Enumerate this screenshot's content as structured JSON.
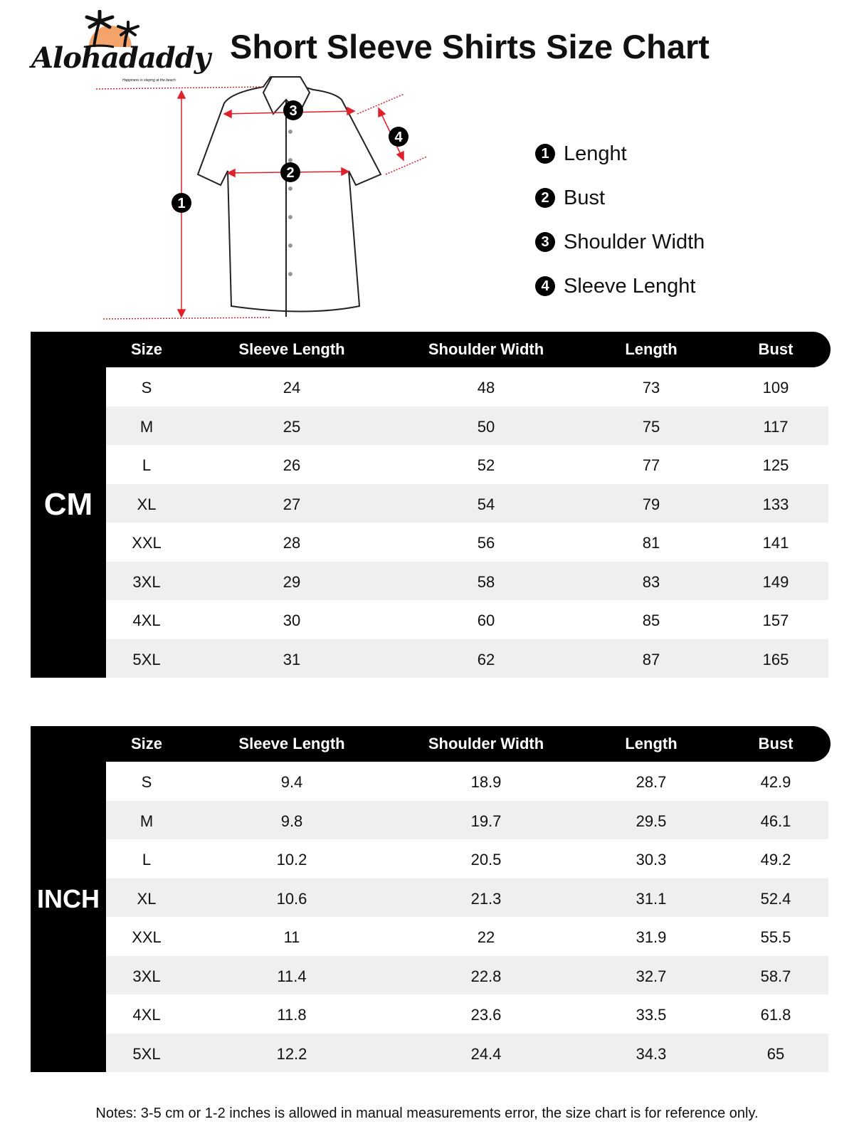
{
  "brand": {
    "name": "Alohadaddy",
    "tagline": "Happiness is staying at the beach",
    "accent": "#f4a36b"
  },
  "title": "Short Sleeve Shirts Size Chart",
  "diagram": {
    "markers": [
      "1",
      "2",
      "3",
      "4"
    ],
    "arrow_color": "#e0202a"
  },
  "legend": [
    {
      "num": "1",
      "label": "Lenght"
    },
    {
      "num": "2",
      "label": "Bust"
    },
    {
      "num": "3",
      "label": "Shoulder Width"
    },
    {
      "num": "4",
      "label": "Sleeve Lenght"
    }
  ],
  "columns": [
    "Size",
    "Sleeve Length",
    "Shoulder Width",
    "Length",
    "Bust"
  ],
  "tables": [
    {
      "unit": "CM",
      "rows": [
        [
          "S",
          "24",
          "48",
          "73",
          "109"
        ],
        [
          "M",
          "25",
          "50",
          "75",
          "117"
        ],
        [
          "L",
          "26",
          "52",
          "77",
          "125"
        ],
        [
          "XL",
          "27",
          "54",
          "79",
          "133"
        ],
        [
          "XXL",
          "28",
          "56",
          "81",
          "141"
        ],
        [
          "3XL",
          "29",
          "58",
          "83",
          "149"
        ],
        [
          "4XL",
          "30",
          "60",
          "85",
          "157"
        ],
        [
          "5XL",
          "31",
          "62",
          "87",
          "165"
        ]
      ]
    },
    {
      "unit": "INCH",
      "rows": [
        [
          "S",
          "9.4",
          "18.9",
          "28.7",
          "42.9"
        ],
        [
          "M",
          "9.8",
          "19.7",
          "29.5",
          "46.1"
        ],
        [
          "L",
          "10.2",
          "20.5",
          "30.3",
          "49.2"
        ],
        [
          "XL",
          "10.6",
          "21.3",
          "31.1",
          "52.4"
        ],
        [
          "XXL",
          "11",
          "22",
          "31.9",
          "55.5"
        ],
        [
          "3XL",
          "11.4",
          "22.8",
          "32.7",
          "58.7"
        ],
        [
          "4XL",
          "11.8",
          "23.6",
          "33.5",
          "61.8"
        ],
        [
          "5XL",
          "12.2",
          "24.4",
          "34.3",
          "65"
        ]
      ]
    }
  ],
  "notes": "Notes: 3-5 cm or 1-2 inches is allowed in manual measurements error, the size chart is for reference only."
}
